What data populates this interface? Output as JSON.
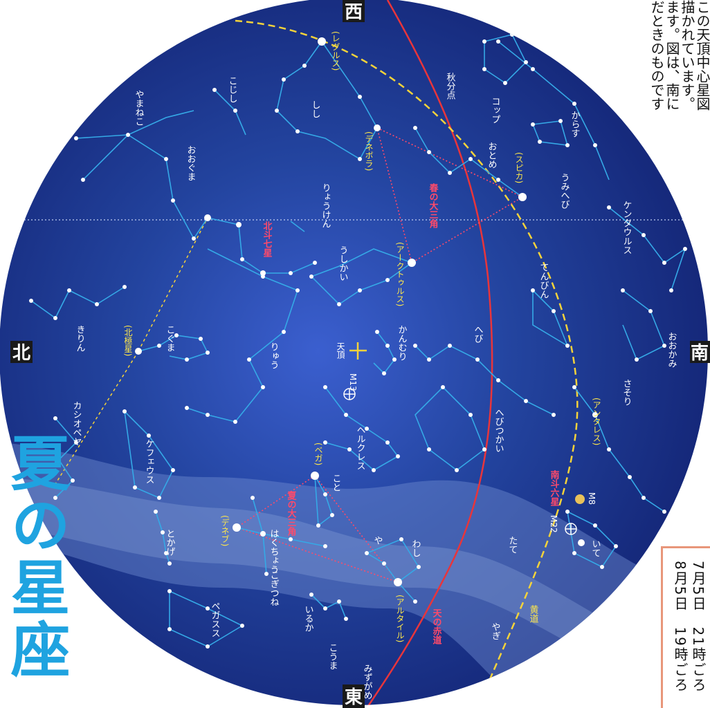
{
  "title": "夏の星座",
  "directions": {
    "north": "北",
    "south": "南",
    "east": "東",
    "west": "西"
  },
  "constellations": [
    "きりん",
    "カシオペヤ",
    "ケフェウス",
    "とかげ",
    "ペガスス",
    "こうま",
    "みずがめ",
    "いるか",
    "こぎつね",
    "はくちょう",
    "や",
    "わし",
    "こと",
    "ヘルクレス",
    "りゅう",
    "こぐま",
    "おおぐま",
    "やまねこ",
    "こじし",
    "しし",
    "りょうけん",
    "うしかい",
    "かんむり",
    "へび",
    "へびつかい",
    "たて",
    "いて",
    "やぎ",
    "さそり",
    "てんびん",
    "おおかみ",
    "ケンタウルス",
    "うみへび",
    "からす",
    "コップ",
    "おとめ"
  ],
  "stars": [
    "(北極星)",
    "(ベガ)",
    "(デネブ)",
    "(アルタイル)",
    "(アークトゥルス)",
    "(スピカ)",
    "(デネボラ)",
    "(レグルス)",
    "(アンタレス)"
  ],
  "markers": {
    "zenith": "天頂",
    "m13": "M13",
    "m22": "M22",
    "m8": "M8",
    "equinox": "秋分点"
  },
  "lines": {
    "equator": "天の赤道",
    "ecliptic": "黄道"
  },
  "asterisms": {
    "spring": "春の大三角",
    "summer": "夏の大三角",
    "dipper": "北斗七星",
    "nanto": "南斗六星"
  },
  "notes": [
    "この天頂中心星図",
    "描かれています。",
    "ます。図は、南に",
    "だときのものです"
  ],
  "times": [
    "7月5日　21時ごろ",
    "8月5日　19時ごろ"
  ],
  "colors": {
    "sky": "#1c3a9c",
    "milky_way": "#6d86c7",
    "equator": "#e8353b",
    "ecliptic": "#f5d33a",
    "constellation_line": "#35a9e6",
    "title": "#1fa3e0"
  }
}
